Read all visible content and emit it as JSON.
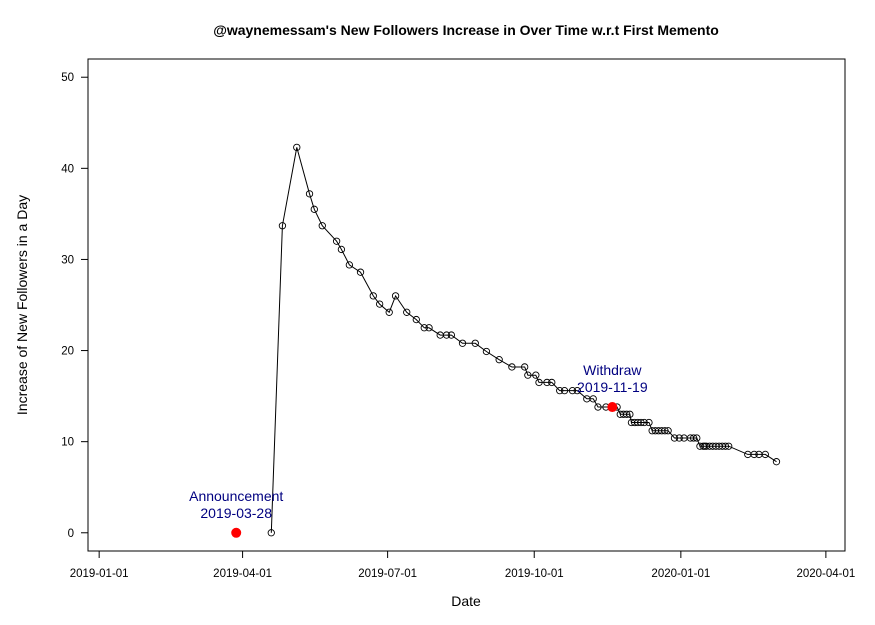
{
  "chart_data": {
    "type": "line",
    "title": "@waynemessam's New Followers Increase in Over Time w.r.t First Memento",
    "xlabel": "Date",
    "ylabel": "Increase of New Followers in a Day",
    "xlim": [
      "2018-12-25",
      "2020-04-13"
    ],
    "ylim": [
      -2,
      52
    ],
    "x_ticks": [
      "2019-01-01",
      "2019-04-01",
      "2019-07-01",
      "2019-10-01",
      "2020-01-01",
      "2020-04-01"
    ],
    "y_ticks": [
      0,
      10,
      20,
      30,
      40,
      50
    ],
    "grid": false,
    "series": [
      {
        "marker": "open-circle",
        "line_color": "#000000",
        "x": [
          "2019-04-19",
          "2019-04-26",
          "2019-05-05",
          "2019-05-13",
          "2019-05-16",
          "2019-05-21",
          "2019-05-30",
          "2019-06-02",
          "2019-06-07",
          "2019-06-14",
          "2019-06-22",
          "2019-06-26",
          "2019-07-02",
          "2019-07-06",
          "2019-07-13",
          "2019-07-19",
          "2019-07-24",
          "2019-07-27",
          "2019-08-03",
          "2019-08-07",
          "2019-08-10",
          "2019-08-17",
          "2019-08-25",
          "2019-09-01",
          "2019-09-09",
          "2019-09-17",
          "2019-09-25",
          "2019-09-27",
          "2019-10-02",
          "2019-10-04",
          "2019-10-09",
          "2019-10-12",
          "2019-10-17",
          "2019-10-20",
          "2019-10-25",
          "2019-10-28",
          "2019-11-03",
          "2019-11-07",
          "2019-11-10",
          "2019-11-15",
          "2019-11-19",
          "2019-11-22",
          "2019-11-24",
          "2019-11-26",
          "2019-11-28",
          "2019-11-30",
          "2019-12-01",
          "2019-12-03",
          "2019-12-05",
          "2019-12-07",
          "2019-12-09",
          "2019-12-12",
          "2019-12-14",
          "2019-12-16",
          "2019-12-18",
          "2019-12-20",
          "2019-12-22",
          "2019-12-24",
          "2019-12-28",
          "2019-12-31",
          "2020-01-03",
          "2020-01-07",
          "2020-01-09",
          "2020-01-11",
          "2020-01-13",
          "2020-01-15",
          "2020-01-16",
          "2020-01-17",
          "2020-01-19",
          "2020-01-21",
          "2020-01-23",
          "2020-01-25",
          "2020-01-27",
          "2020-01-29",
          "2020-01-31",
          "2020-02-12",
          "2020-02-16",
          "2020-02-19",
          "2020-02-23",
          "2020-03-01"
        ],
        "values": [
          0.0,
          33.7,
          42.3,
          37.2,
          35.5,
          33.7,
          32.0,
          31.1,
          29.4,
          28.6,
          26.0,
          25.1,
          24.2,
          26.0,
          24.2,
          23.4,
          22.5,
          22.5,
          21.7,
          21.7,
          21.7,
          20.8,
          20.8,
          19.9,
          19.0,
          18.2,
          18.2,
          17.3,
          17.3,
          16.5,
          16.5,
          16.5,
          15.6,
          15.6,
          15.6,
          15.6,
          14.7,
          14.7,
          13.8,
          13.8,
          13.8,
          13.8,
          13.0,
          13.0,
          13.0,
          13.0,
          12.1,
          12.1,
          12.1,
          12.1,
          12.1,
          12.1,
          11.2,
          11.2,
          11.2,
          11.2,
          11.2,
          11.2,
          10.4,
          10.4,
          10.4,
          10.4,
          10.4,
          10.4,
          9.5,
          9.5,
          9.5,
          9.5,
          9.5,
          9.5,
          9.5,
          9.5,
          9.5,
          9.5,
          9.5,
          8.6,
          8.6,
          8.6,
          8.6,
          7.8
        ]
      }
    ],
    "annotations": [
      {
        "label": "Announcement",
        "date_text": "2019-03-28",
        "x": "2019-03-28",
        "y": 0.0,
        "marker_color": "#ff0000",
        "text_color": "#000080"
      },
      {
        "label": "Withdraw",
        "date_text": "2019-11-19",
        "x": "2019-11-19",
        "y": 13.8,
        "marker_color": "#ff0000",
        "text_color": "#000080"
      }
    ]
  }
}
